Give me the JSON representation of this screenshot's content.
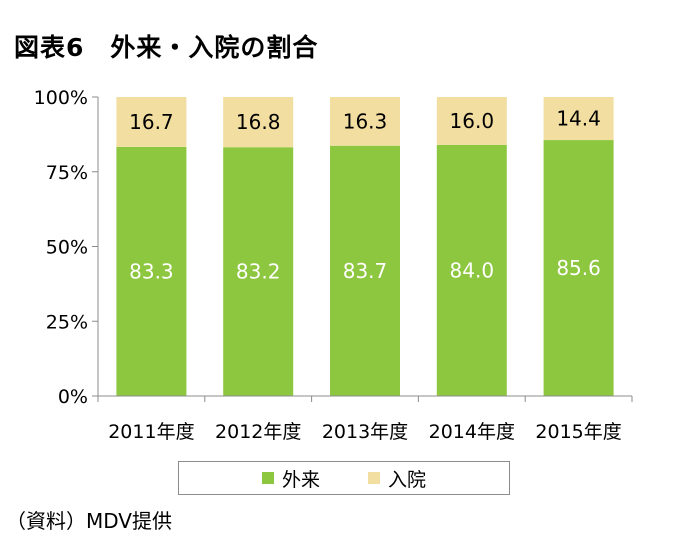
{
  "title": "図表6　外来・入院の割合",
  "source": "（資料）MDV提供",
  "colors": {
    "outpatient": "#8dc63f",
    "inpatient": "#f2dea0",
    "axis": "#8c8c8c"
  },
  "chart_data": {
    "type": "bar",
    "stacked": true,
    "percent": true,
    "categories": [
      "2011年度",
      "2012年度",
      "2013年度",
      "2014年度",
      "2015年度"
    ],
    "series": [
      {
        "name": "外来",
        "values": [
          83.3,
          83.2,
          83.7,
          84.0,
          85.6
        ],
        "labels": [
          "83.3",
          "83.2",
          "83.7",
          "84.0",
          "85.6"
        ]
      },
      {
        "name": "入院",
        "values": [
          16.7,
          16.8,
          16.3,
          16.0,
          14.4
        ],
        "labels": [
          "16.7",
          "16.8",
          "16.3",
          "16.0",
          "14.4"
        ]
      }
    ],
    "ylim": [
      0,
      100
    ],
    "yticks": [
      "0%",
      "25%",
      "50%",
      "75%",
      "100%"
    ],
    "grid": false,
    "legend": "bottom"
  }
}
